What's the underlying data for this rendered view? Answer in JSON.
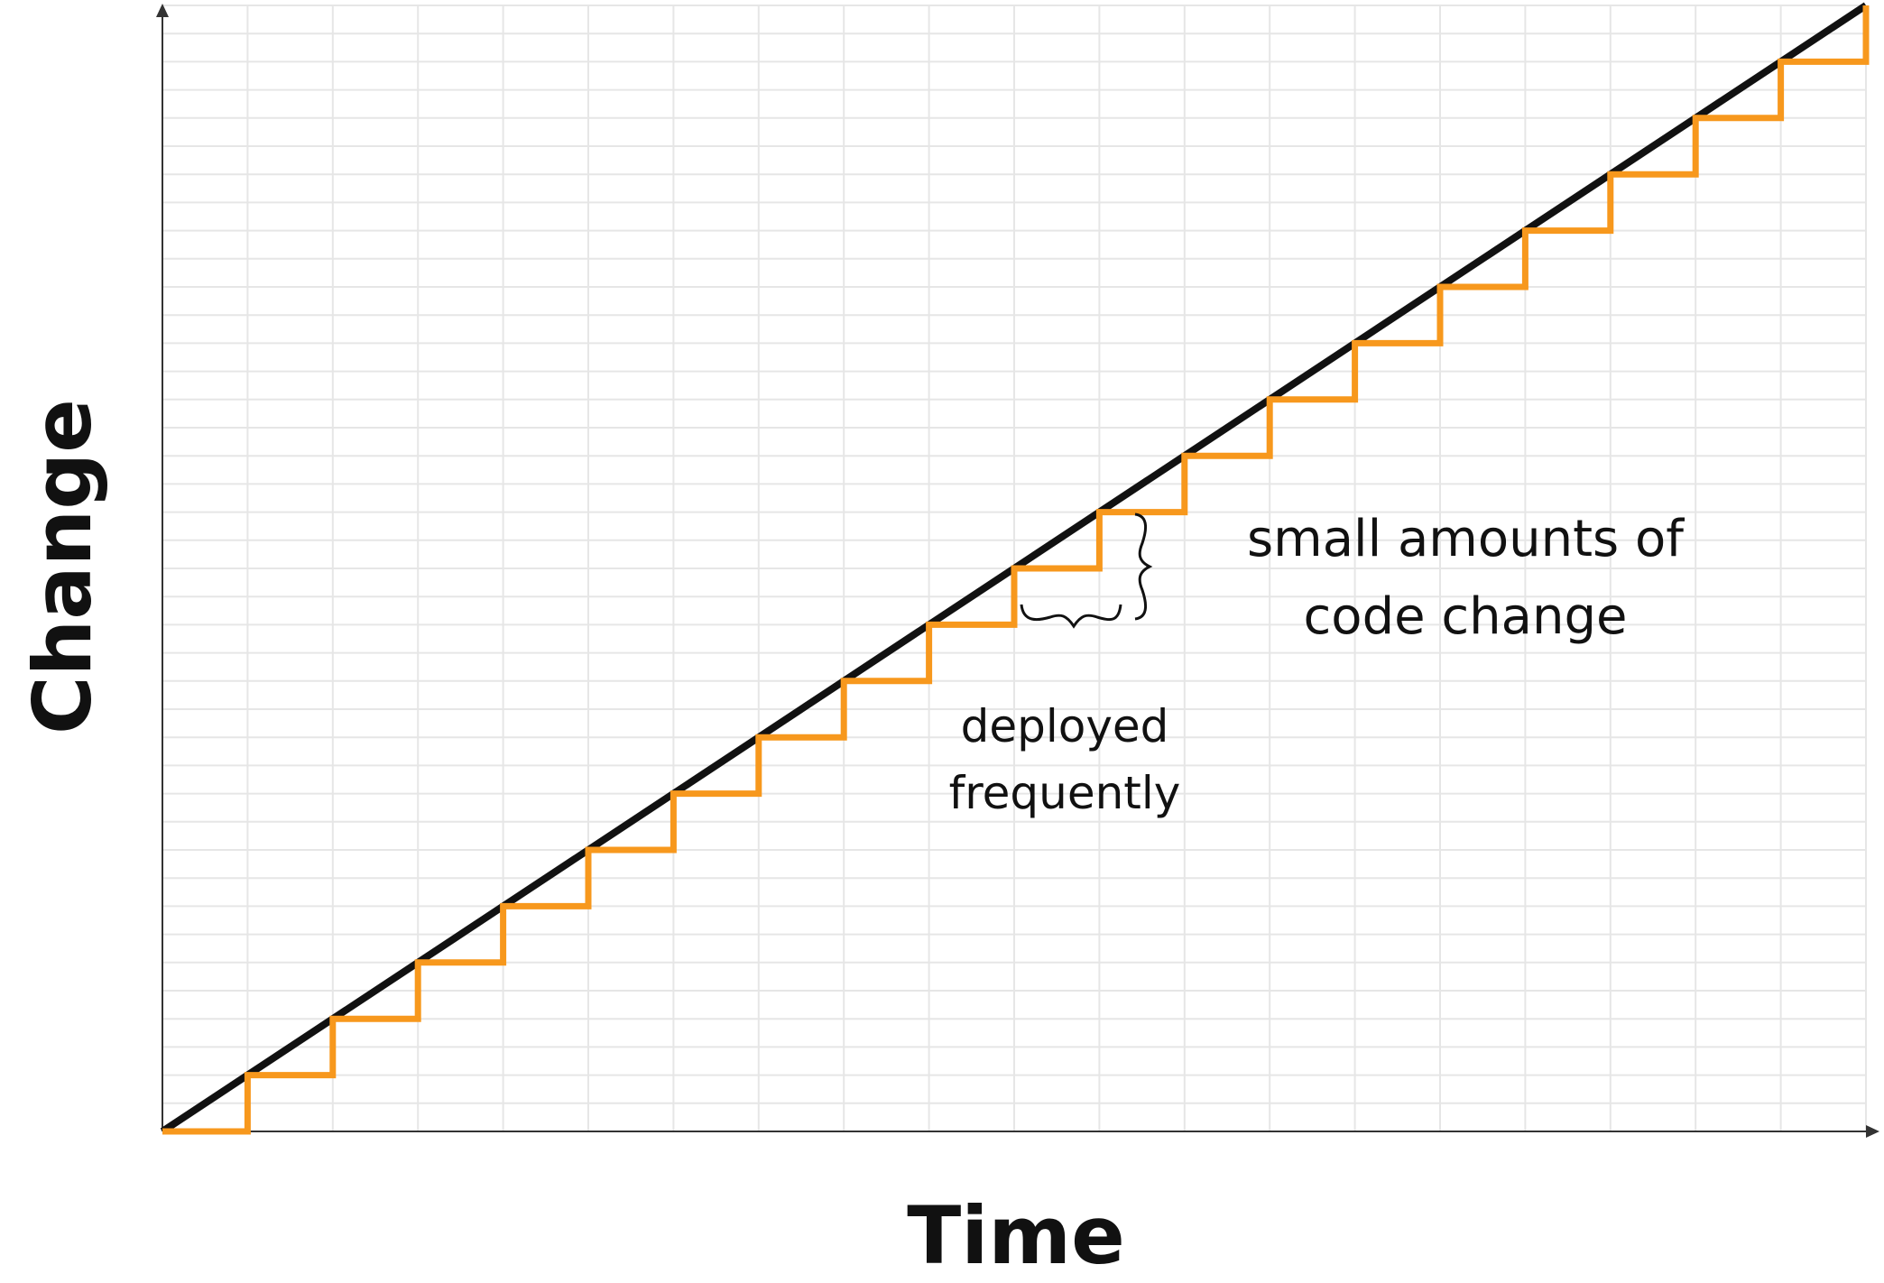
{
  "chart_data": {
    "type": "line",
    "xlabel": "Time",
    "ylabel": "Change",
    "grid": true,
    "xlim": [
      0,
      20
    ],
    "ylim": [
      0,
      20
    ],
    "series": [
      {
        "style": "continuous",
        "color": "#111111",
        "x": [
          0,
          20
        ],
        "y": [
          0,
          20
        ]
      },
      {
        "style": "step",
        "color": "#f7981d",
        "x": [
          0,
          1,
          1,
          2,
          2,
          3,
          3,
          4,
          4,
          5,
          5,
          6,
          6,
          7,
          7,
          8,
          8,
          9,
          9,
          10,
          10,
          11,
          11,
          12,
          12,
          13,
          13,
          14,
          14,
          15,
          15,
          16,
          16,
          17,
          17,
          18,
          18,
          19,
          19,
          20,
          20
        ],
        "y": [
          0,
          0,
          1,
          1,
          2,
          2,
          3,
          3,
          4,
          4,
          5,
          5,
          6,
          6,
          7,
          7,
          8,
          8,
          9,
          9,
          10,
          10,
          11,
          11,
          12,
          12,
          13,
          13,
          14,
          14,
          15,
          15,
          16,
          16,
          17,
          17,
          18,
          18,
          19,
          19,
          20
        ]
      }
    ],
    "annotations": [
      {
        "id": "frequency",
        "lines": [
          "deployed",
          "frequently"
        ]
      },
      {
        "id": "size",
        "lines": [
          "small amounts of",
          "code change"
        ]
      }
    ]
  }
}
